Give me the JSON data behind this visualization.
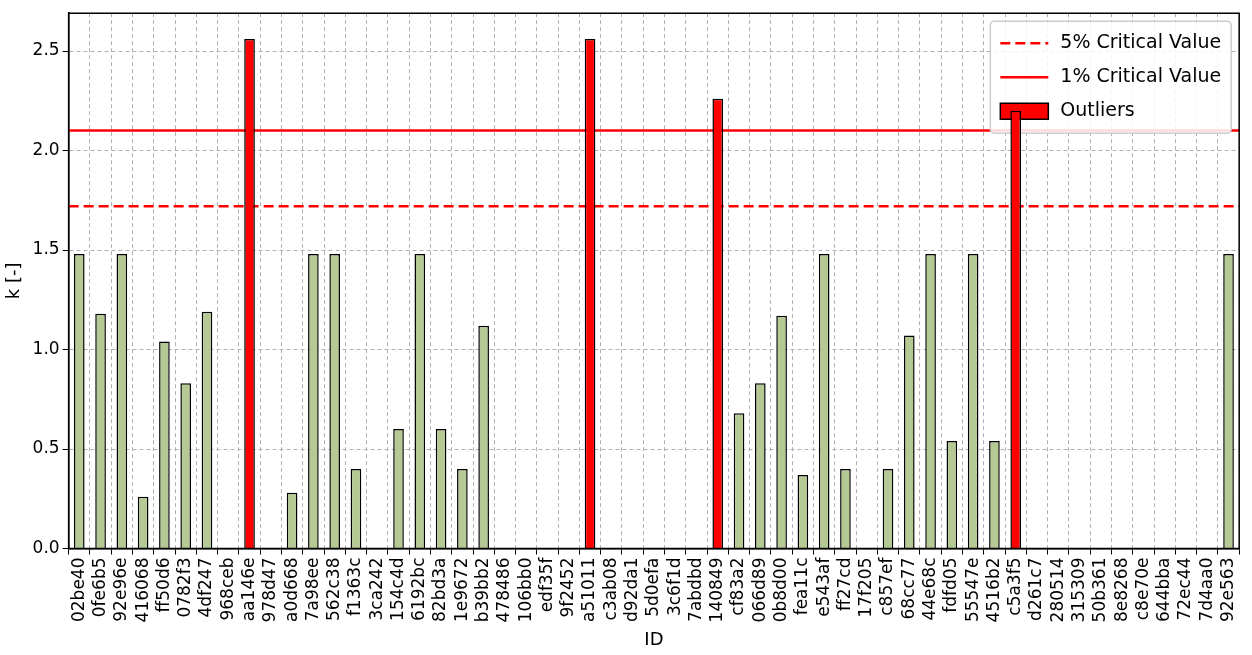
{
  "chart_data": {
    "type": "bar",
    "xlabel": "ID",
    "ylabel": "k [-]",
    "categories": [
      "02be40",
      "0fe6b5",
      "92e96e",
      "416068",
      "ff50d6",
      "0782f3",
      "4df247",
      "968ceb",
      "aa146e",
      "978d47",
      "a0d668",
      "7a98ee",
      "562c38",
      "f1363c",
      "3ca242",
      "154c4d",
      "6192bc",
      "82bd3a",
      "1e9672",
      "b39bb2",
      "478486",
      "106bb0",
      "edf35f",
      "9f2452",
      "a51011",
      "c3ab08",
      "d92da1",
      "5d0efa",
      "3c6f1d",
      "7abdbd",
      "140849",
      "cf83a2",
      "066d89",
      "0b8d00",
      "fea11c",
      "e543af",
      "ff27cd",
      "17f205",
      "c857ef",
      "68cc77",
      "44e68c",
      "fdfd05",
      "55547e",
      "4516b2",
      "c5a3f5",
      "d261c7",
      "280514",
      "315309",
      "50b361",
      "8e8268",
      "c8e70e",
      "644bba",
      "72ec44",
      "7d4aa0",
      "92e563"
    ],
    "series": [
      {
        "color": "#b5c994",
        "values": [
          1.48,
          1.18,
          1.48,
          0.26,
          1.04,
          0.83,
          1.19,
          0,
          null,
          0,
          0.28,
          1.48,
          1.48,
          0.4,
          0,
          0.6,
          1.48,
          0.6,
          0.4,
          1.12,
          0,
          0,
          0,
          0,
          null,
          0,
          0,
          0,
          0,
          0,
          null,
          0.68,
          0.83,
          1.17,
          0.37,
          1.48,
          0.4,
          0,
          0.4,
          1.07,
          1.48,
          0.54,
          1.48,
          0.54,
          null,
          0,
          0,
          0,
          0,
          0,
          0,
          0,
          0,
          0,
          1.48
        ]
      },
      {
        "name": "Outliers",
        "color": "#ff0000",
        "values": [
          null,
          null,
          null,
          null,
          null,
          null,
          null,
          null,
          2.56,
          null,
          null,
          null,
          null,
          null,
          null,
          null,
          null,
          null,
          null,
          null,
          null,
          null,
          null,
          null,
          2.56,
          null,
          null,
          null,
          null,
          null,
          2.26,
          null,
          null,
          null,
          null,
          null,
          null,
          null,
          null,
          null,
          null,
          null,
          null,
          null,
          2.2,
          null,
          null,
          null,
          null,
          null,
          null,
          null,
          null,
          null,
          null
        ]
      }
    ],
    "ref_lines": [
      {
        "axis": "y",
        "value": 1.72,
        "label": "5% Critical Value",
        "color": "#ff0000",
        "line_style": "dashed"
      },
      {
        "axis": "y",
        "value": 2.1,
        "label": "1% Critical Value",
        "color": "#ff0000",
        "line_style": "solid"
      }
    ],
    "ylim": [
      0,
      2.69
    ],
    "yticks": [
      {
        "value": 0,
        "label": "0.0"
      },
      {
        "value": 0.5,
        "label": "0.5"
      },
      {
        "value": 1,
        "label": "1.0"
      },
      {
        "value": 1.5,
        "label": "1.5"
      },
      {
        "value": 2,
        "label": "2.0"
      },
      {
        "value": 2.5,
        "label": "2.5"
      }
    ],
    "grid": true,
    "legend": "top right"
  }
}
